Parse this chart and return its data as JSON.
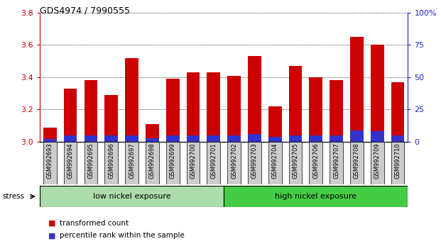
{
  "title": "GDS4974 / 7990555",
  "samples": [
    "GSM992693",
    "GSM992694",
    "GSM992695",
    "GSM992696",
    "GSM992697",
    "GSM992698",
    "GSM992699",
    "GSM992700",
    "GSM992701",
    "GSM992702",
    "GSM992703",
    "GSM992704",
    "GSM992705",
    "GSM992706",
    "GSM992707",
    "GSM992708",
    "GSM992709",
    "GSM992710"
  ],
  "transformed_count": [
    3.09,
    3.33,
    3.38,
    3.29,
    3.52,
    3.11,
    3.39,
    3.43,
    3.43,
    3.41,
    3.53,
    3.22,
    3.47,
    3.4,
    3.38,
    3.65,
    3.6,
    3.37
  ],
  "percentile_rank_pct": [
    2,
    5,
    5,
    5,
    5,
    3,
    5,
    5,
    5,
    5,
    6,
    4,
    5,
    5,
    5,
    9,
    8,
    5
  ],
  "bar_base": 3.0,
  "ylim_left": [
    3.0,
    3.8
  ],
  "ylim_right": [
    0,
    100
  ],
  "yticks_left": [
    3.0,
    3.2,
    3.4,
    3.6,
    3.8
  ],
  "yticks_right": [
    0,
    25,
    50,
    75,
    100
  ],
  "red_color": "#cc0000",
  "blue_color": "#3333cc",
  "bar_width": 0.65,
  "groups": [
    {
      "label": "low nickel exposure",
      "start": 0,
      "end": 9,
      "color": "#aaddaa"
    },
    {
      "label": "high nickel exposure",
      "start": 9,
      "end": 18,
      "color": "#44cc44"
    }
  ],
  "stress_label": "stress",
  "legend_red": "transformed count",
  "legend_blue": "percentile rank within the sample",
  "left_tick_color": "#cc0000",
  "right_tick_color": "#2222cc",
  "xlabel_bg": "#cccccc",
  "low_group_color": "#aaddaa",
  "high_group_color": "#44cc44"
}
